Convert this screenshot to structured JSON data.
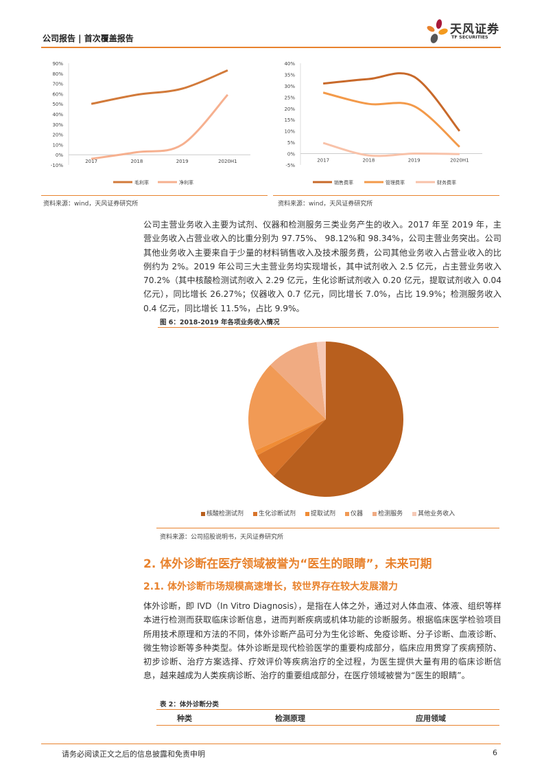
{
  "header": {
    "title": "公司报告 | 首次覆盖报告",
    "logo_cn": "天风证券",
    "logo_en": "TF SECURITIES"
  },
  "colors": {
    "accent": "#e8822d",
    "dark_orange": "#c8692a",
    "light_orange": "#f6b08f"
  },
  "chart_data": [
    {
      "type": "line",
      "x": [
        "2017",
        "2018",
        "2019",
        "2020H1"
      ],
      "ylim": [
        -10,
        90
      ],
      "yticks": [
        "-10%",
        "0%",
        "10%",
        "20%",
        "30%",
        "40%",
        "50%",
        "60%",
        "70%",
        "80%",
        "90%"
      ],
      "legend": "bottom",
      "series": [
        {
          "name": "毛利率",
          "values": [
            50,
            59,
            65,
            83
          ],
          "color": "#d27a3a"
        },
        {
          "name": "净利率",
          "values": [
            -4,
            2.5,
            10,
            59
          ],
          "color": "#f6b08f"
        }
      ]
    },
    {
      "type": "line",
      "x": [
        "2017",
        "2018",
        "2019",
        "2020H1"
      ],
      "ylim": [
        -5,
        40
      ],
      "yticks": [
        "-5%",
        "0%",
        "5%",
        "10%",
        "15%",
        "20%",
        "25%",
        "30%",
        "35%",
        "40%"
      ],
      "legend": "bottom",
      "series": [
        {
          "name": "销售费率",
          "values": [
            31,
            33,
            34,
            10
          ],
          "color": "#c8692a"
        },
        {
          "name": "管理费率",
          "values": [
            27,
            22,
            21,
            3
          ],
          "color": "#f39a4a"
        },
        {
          "name": "财务费率",
          "values": [
            4.7,
            -0.8,
            0,
            -0.2
          ],
          "color": "#f8c2a9"
        }
      ]
    },
    {
      "type": "pie",
      "unit": "亿元",
      "legend": "bottom",
      "categories": [
        "核酸检测试剂",
        "生化诊断试剂",
        "提取试剂",
        "仪器",
        "检测服务",
        "其他业务收入"
      ],
      "values": [
        2.29,
        0.2,
        0.04,
        0.7,
        0.4,
        0.07
      ],
      "colors": [
        "#b85f1e",
        "#d8742a",
        "#f08c35",
        "#f19a55",
        "#f0ab82",
        "#f6c9b6"
      ]
    }
  ],
  "sources": {
    "left": "资料来源：wind，天风证券研究所",
    "right": "资料来源：wind，天风证券研究所",
    "pie": "资料来源：公司招股说明书，天风证券研究所"
  },
  "paragraph1": "公司主营业务收入主要为试剂、仪器和检测服务三类业务产生的收入。2017 年至 2019 年，主营业务收入占营业收入的比重分别为 97.75%、 98.12%和 98.34%，公司主营业务突出。公司其他业务收入主要来自于少量的材料销售收入及技术服务费，公司其他业务收入占营业收入的比例约为 2%。2019 年公司三大主营业务均实现增长，其中试剂收入 2.5 亿元，占主营业务收入 70.2%（其中核酸检测试剂收入 2.29 亿元，生化诊断试剂收入 0.20 亿元，提取试剂收入 0.04 亿元），同比增长 26.27%；仪器收入 0.7 亿元，同比增长 7.0%，占比 19.9%；检测服务收入 0.4 亿元，同比增长 11.5%，占比 9.9%。",
  "figure6_caption": "图 6：2018-2019 年各项业务收入情况",
  "heading2": "2. 体外诊断在医疗领域被誉为“医生的眼睛”，未来可期",
  "heading21": "2.1. 体外诊断市场规模高速增长，较世界存在较大发展潜力",
  "paragraph2": "体外诊断，即 IVD（In Vitro Diagnosis），是指在人体之外，通过对人体血液、体液、组织等样本进行检测而获取临床诊断信息，进而判断疾病或机体功能的诊断服务。根据临床医学检验项目所用技术原理和方法的不同，体外诊断产品可分为生化诊断、免疫诊断、分子诊断、血液诊断、微生物诊断等多种类型。体外诊断是现代检验医学的重要构成部分，临床应用贯穿了疾病预防、初步诊断、治疗方案选择、疗效评价等疾病治疗的全过程，为医生提供大量有用的临床诊断信息，越来越成为人类疾病诊断、治疗的重要组成部分，在医疗领域被誉为“医生的眼睛”。",
  "table2": {
    "caption": "表 2：体外诊断分类",
    "headers": [
      "种类",
      "检测原理",
      "应用领域"
    ]
  },
  "footer": {
    "disclaimer": "请务必阅读正文之后的信息披露和免责申明",
    "page": "6"
  }
}
